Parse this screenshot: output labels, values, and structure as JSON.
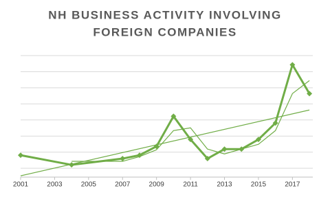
{
  "chart_data": {
    "type": "line",
    "title": [
      "NH BUSINESS ACTIVITY INVOLVING",
      "FOREIGN COMPANIES"
    ],
    "xlim": [
      2001,
      2018.2
    ],
    "xticks": [
      2001,
      2003,
      2005,
      2007,
      2009,
      2011,
      2013,
      2015,
      2017
    ],
    "ylim": [
      0.45,
      8
    ],
    "ygrid": [
      1,
      2,
      3,
      4,
      5,
      6,
      7,
      8
    ],
    "grid": true,
    "series": [
      {
        "color": "#70ad47",
        "width": 3,
        "markers": true,
        "x": [
          2001,
          2004,
          2007,
          2008,
          2009,
          2010,
          2011,
          2012,
          2013,
          2014,
          2015,
          2016,
          2017,
          2018
        ],
        "values": [
          1.81,
          1.21,
          1.6,
          1.81,
          2.36,
          4.23,
          2.79,
          1.6,
          2.19,
          2.19,
          2.79,
          3.81,
          7.43,
          5.64
        ]
      },
      {
        "color": "#70ad47",
        "width": 1.2,
        "markers": false,
        "x": [
          2004,
          2007,
          2008,
          2009,
          2010,
          2011,
          2012,
          2013,
          2014,
          2015,
          2016,
          2017,
          2018
        ],
        "values": [
          1.43,
          1.43,
          1.72,
          2.15,
          3.34,
          3.51,
          2.19,
          1.89,
          2.19,
          2.49,
          3.34,
          5.64,
          6.45
        ]
      },
      {
        "color": "#70ad47",
        "width": 1.2,
        "markers": false,
        "x": [
          2001,
          2018
        ],
        "values": [
          0.53,
          4.62
        ]
      }
    ]
  }
}
